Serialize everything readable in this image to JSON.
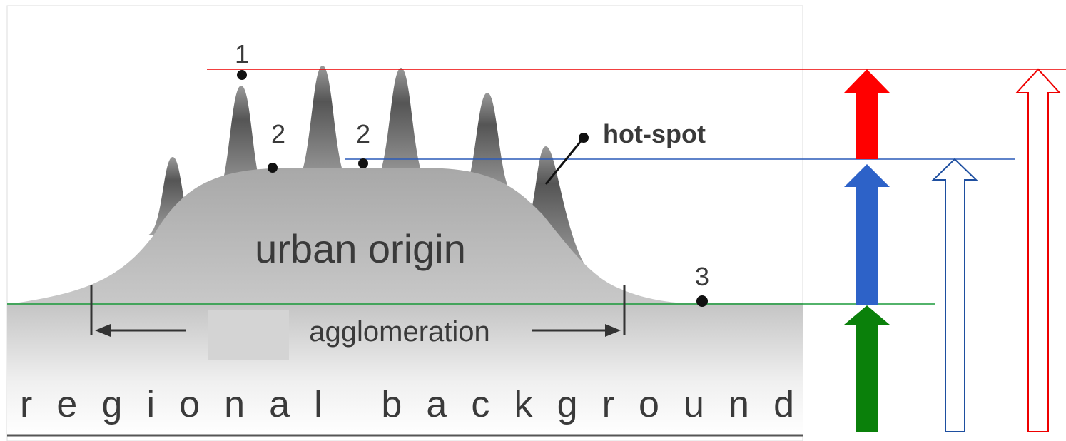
{
  "labels": {
    "peak_1": "1",
    "peak_2a": "2",
    "peak_2b": "2",
    "hot_spot": "hot-spot",
    "urban_origin": "urban origin",
    "point_3": "3",
    "agglomeration": "agglomeration",
    "regional_background": "regional background"
  }
}
